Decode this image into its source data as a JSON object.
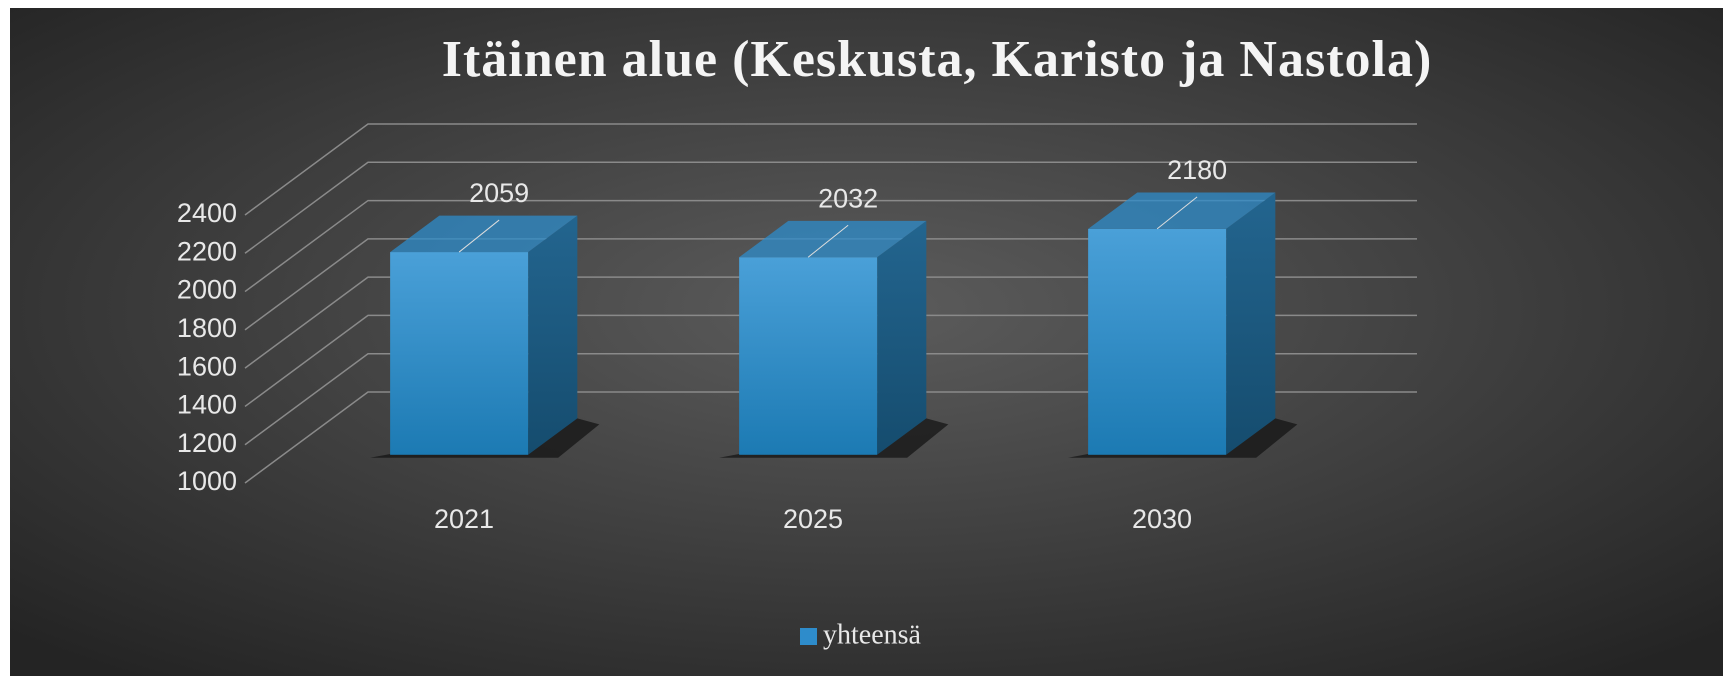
{
  "chart_data": {
    "type": "bar",
    "title": "Itäinen alue (Keskusta, Karisto ja Nastola)",
    "categories": [
      "2021",
      "2025",
      "2030"
    ],
    "series": [
      {
        "name": "yhteensä",
        "color": "#2e8ccb",
        "values": [
          2059,
          2032,
          2180
        ]
      }
    ],
    "ylim": [
      1000,
      2400
    ],
    "yticks": [
      1000,
      1200,
      1400,
      1600,
      1800,
      2000,
      2200,
      2400
    ],
    "grid": true,
    "legend": "bottom"
  }
}
